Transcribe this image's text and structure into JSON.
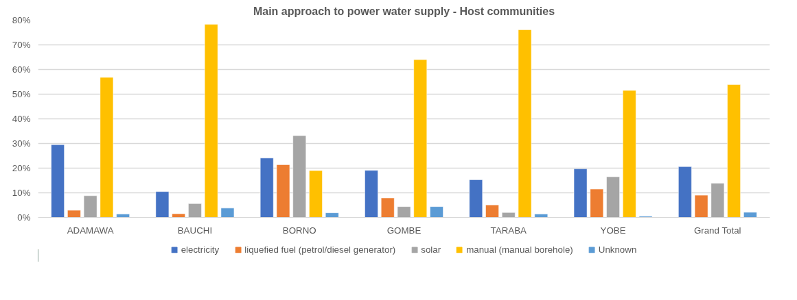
{
  "chart_data": {
    "type": "bar",
    "title": "Main approach to power water supply - Host communities",
    "categories": [
      "ADAMAWA",
      "BAUCHI",
      "BORNO",
      "GOMBE",
      "TARABA",
      "YOBE",
      "Grand Total"
    ],
    "series": [
      {
        "name": "electricity",
        "color": "#4472c4",
        "values": [
          29.5,
          10.5,
          24.1,
          19.1,
          15.3,
          19.7,
          20.6
        ]
      },
      {
        "name": "liquefied fuel (petrol/diesel generator)",
        "color": "#ed7d31",
        "values": [
          2.9,
          1.5,
          21.4,
          7.9,
          5.1,
          11.5,
          9.0
        ]
      },
      {
        "name": "solar",
        "color": "#a5a5a5",
        "values": [
          8.8,
          5.6,
          33.2,
          4.4,
          2.0,
          16.5,
          13.9
        ]
      },
      {
        "name": "manual (manual borehole)",
        "color": "#ffc000",
        "values": [
          56.8,
          78.3,
          19.0,
          64.0,
          76.1,
          51.5,
          53.9
        ]
      },
      {
        "name": "Unknown",
        "color": "#5b9bd5",
        "values": [
          1.4,
          3.8,
          1.9,
          4.4,
          1.4,
          0.5,
          2.1
        ]
      }
    ],
    "ylim": [
      0,
      80
    ],
    "yticks": [
      {
        "value": 0,
        "label": "0%"
      },
      {
        "value": 10,
        "label": "10%"
      },
      {
        "value": 20,
        "label": "20%"
      },
      {
        "value": 30,
        "label": "30%"
      },
      {
        "value": 40,
        "label": "40%"
      },
      {
        "value": 50,
        "label": "50%"
      },
      {
        "value": 60,
        "label": "60%"
      },
      {
        "value": 70,
        "label": "70%"
      },
      {
        "value": 80,
        "label": "80%"
      }
    ],
    "grid": "y",
    "legend": "bottom"
  }
}
